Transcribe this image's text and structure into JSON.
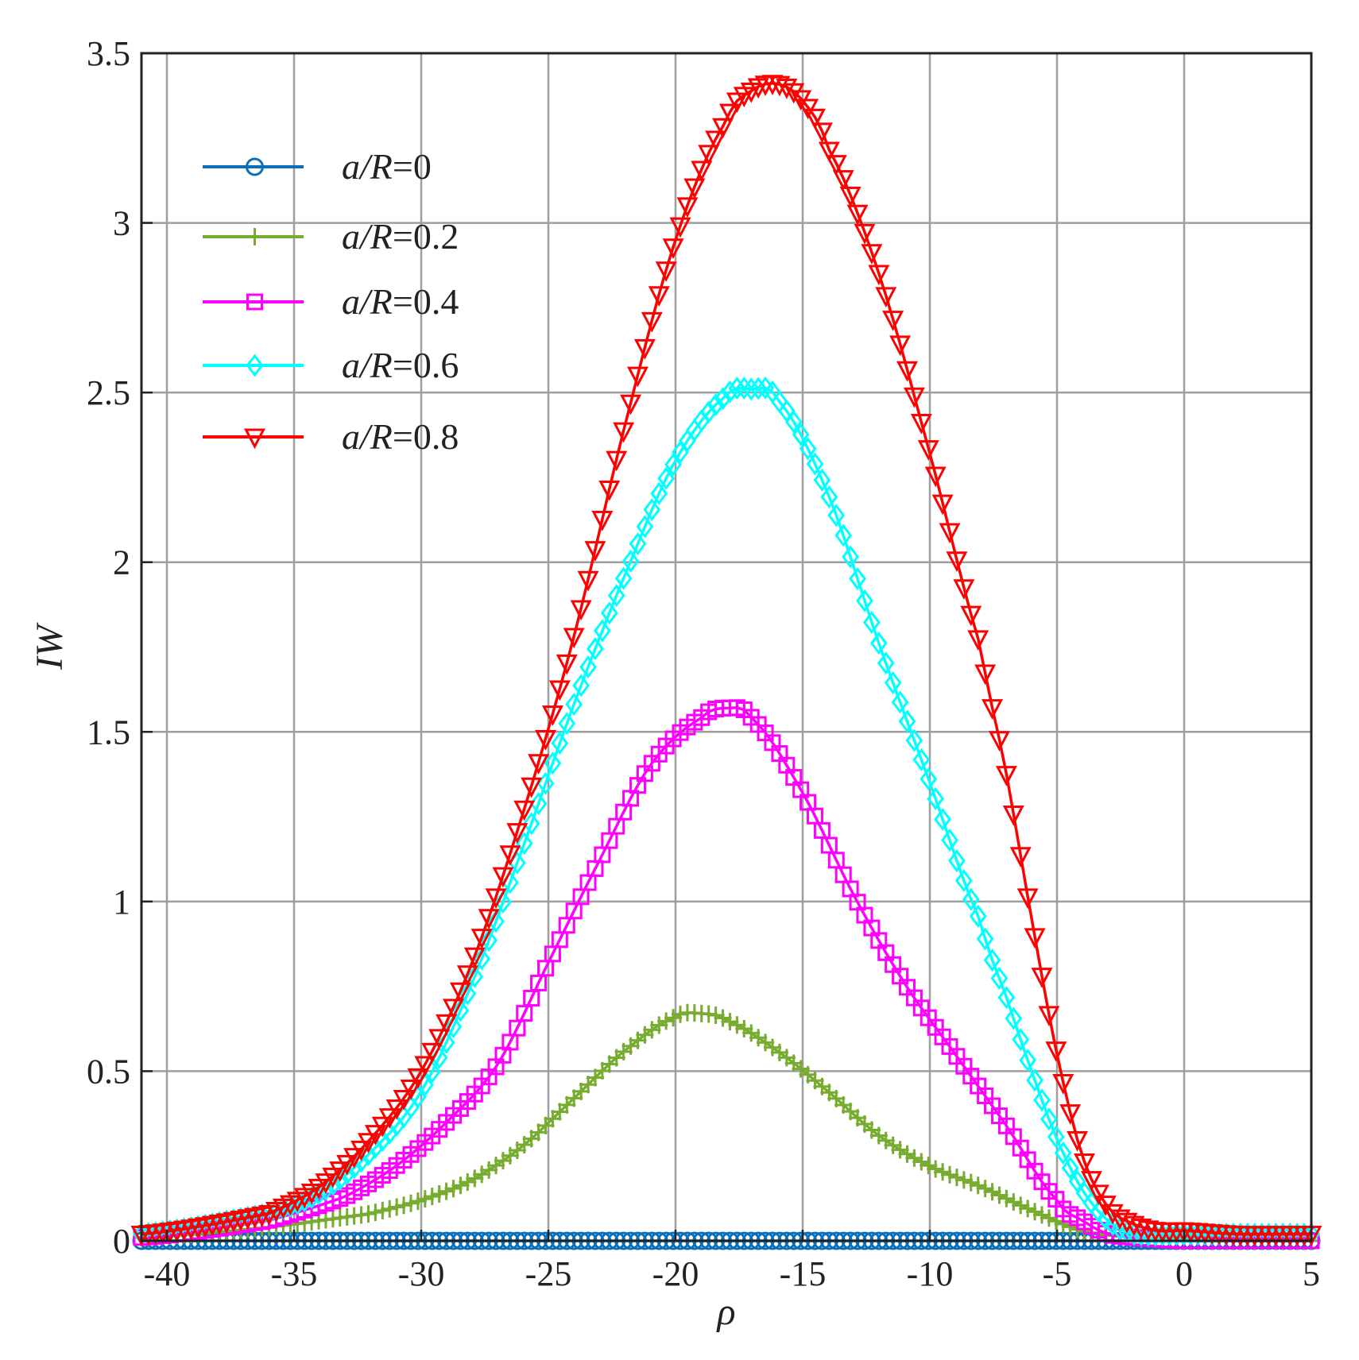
{
  "chart_data": {
    "type": "line",
    "title": "",
    "xlabel": "ρ",
    "ylabel": "IW",
    "xlim": [
      -41,
      5
    ],
    "ylim": [
      0,
      3.5
    ],
    "xticks": [
      -40,
      -35,
      -30,
      -25,
      -20,
      -15,
      -10,
      -5,
      0,
      5
    ],
    "yticks": [
      0,
      0.5,
      1,
      1.5,
      2,
      2.5,
      3,
      3.5
    ],
    "xtick_labels": [
      "-40",
      "-35",
      "-30",
      "-25",
      "-20",
      "-15",
      "-10",
      "-5",
      "0",
      "5"
    ],
    "ytick_labels": [
      "0",
      "0.5",
      "1",
      "1.5",
      "2",
      "2.5",
      "3",
      "3.5"
    ],
    "grid": true,
    "legend_position": "top-left",
    "series": [
      {
        "name": "a/R=0",
        "name_italic": "a/R",
        "name_value": "=0",
        "color": "#0a6fb8",
        "marker": "circle",
        "x": [
          -41,
          -35,
          -30,
          -25,
          -20,
          -15,
          -10,
          -5,
          0,
          5
        ],
        "values": [
          0,
          0,
          0,
          0,
          0,
          0,
          0,
          0,
          0,
          0
        ]
      },
      {
        "name": "a/R=0.2",
        "name_italic": "a/R",
        "name_value": "=0.2",
        "color": "#77ac30",
        "marker": "plus",
        "x": [
          -41,
          -36,
          -32,
          -30,
          -28,
          -26,
          -24,
          -22,
          -20,
          -19,
          -18,
          -16,
          -14,
          -12,
          -10,
          -8,
          -6,
          -4,
          -2,
          0,
          2,
          5
        ],
        "values": [
          0.01,
          0.04,
          0.08,
          0.12,
          0.18,
          0.28,
          0.42,
          0.56,
          0.66,
          0.67,
          0.65,
          0.56,
          0.44,
          0.31,
          0.22,
          0.16,
          0.09,
          0.03,
          0.01,
          0,
          0,
          0
        ]
      },
      {
        "name": "a/R=0.4",
        "name_italic": "a/R",
        "name_value": "=0.4",
        "color": "#ff00ff",
        "marker": "square",
        "x": [
          -41,
          -36,
          -33,
          -31,
          -29,
          -27,
          -25,
          -23,
          -21,
          -19,
          -18,
          -17,
          -15,
          -13,
          -11,
          -9,
          -7,
          -5,
          -4,
          -3,
          -2,
          0,
          5
        ],
        "values": [
          0.01,
          0.06,
          0.13,
          0.22,
          0.35,
          0.52,
          0.82,
          1.12,
          1.4,
          1.54,
          1.57,
          1.54,
          1.32,
          1.02,
          0.76,
          0.55,
          0.34,
          0.12,
          0.06,
          0.02,
          0.01,
          0,
          0
        ]
      },
      {
        "name": "a/R=0.6",
        "name_italic": "a/R",
        "name_value": "=0.6",
        "color": "#00ffff",
        "marker": "diamond",
        "x": [
          -41,
          -36,
          -34,
          -32,
          -30,
          -28,
          -26,
          -24,
          -22,
          -20,
          -18,
          -17,
          -16,
          -14,
          -12,
          -10,
          -8,
          -7,
          -6,
          -5,
          -4,
          -3,
          -2,
          0,
          2,
          5
        ],
        "values": [
          0.02,
          0.08,
          0.14,
          0.26,
          0.44,
          0.76,
          1.16,
          1.58,
          1.96,
          2.3,
          2.49,
          2.51,
          2.48,
          2.2,
          1.76,
          1.35,
          0.94,
          0.72,
          0.5,
          0.3,
          0.15,
          0.06,
          0.02,
          0.02,
          0.02,
          0.02
        ]
      },
      {
        "name": "a/R=0.8",
        "name_italic": "a/R",
        "name_value": "=0.8",
        "color": "#ff0000",
        "marker": "triangle-down",
        "x": [
          -41,
          -36,
          -34,
          -32,
          -30,
          -28,
          -26,
          -24,
          -22,
          -20,
          -18,
          -17,
          -16,
          -15,
          -14,
          -12,
          -10,
          -8,
          -7,
          -6,
          -5,
          -4,
          -3,
          -2,
          -1,
          0,
          2,
          5
        ],
        "values": [
          0.02,
          0.08,
          0.16,
          0.3,
          0.5,
          0.82,
          1.26,
          1.78,
          2.4,
          2.95,
          3.3,
          3.39,
          3.41,
          3.36,
          3.22,
          2.85,
          2.32,
          1.75,
          1.38,
          0.95,
          0.55,
          0.25,
          0.1,
          0.05,
          0.03,
          0.03,
          0.02,
          0.02
        ]
      }
    ]
  }
}
